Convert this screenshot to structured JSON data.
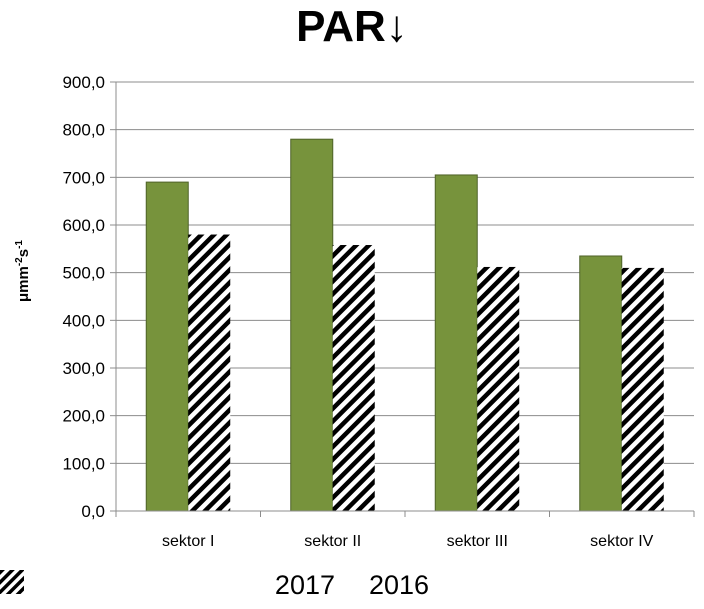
{
  "chart_data": {
    "type": "bar",
    "title": "PAR↓",
    "ylabel": "μmm⁻²s⁻¹",
    "xlabel": "",
    "categories": [
      "sektor I",
      "sektor II",
      "sektor  III",
      "sektor IV"
    ],
    "series": [
      {
        "name": "2017",
        "values": [
          690,
          780,
          705,
          535
        ],
        "color": "#77933c",
        "pattern": "solid"
      },
      {
        "name": "2016",
        "values": [
          580,
          558,
          512,
          510
        ],
        "color": "#000000",
        "pattern": "diagonal-hatch"
      }
    ],
    "ylim": [
      0,
      900
    ],
    "yticks": [
      "0,0",
      "100,0",
      "200,0",
      "300,0",
      "400,0",
      "500,0",
      "600,0",
      "700,0",
      "800,0",
      "900,0"
    ],
    "grid": true,
    "legend_position": "bottom"
  }
}
